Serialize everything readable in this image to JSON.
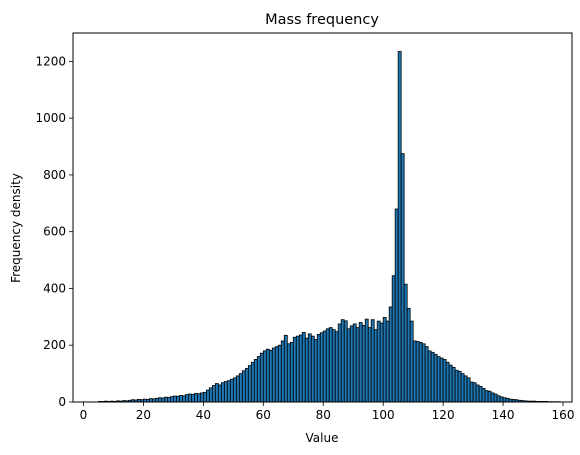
{
  "chart_data": {
    "type": "bar",
    "title": "Mass frequency",
    "xlabel": "Value",
    "ylabel": "Frequency density",
    "xlim": [
      -3.5,
      163
    ],
    "ylim": [
      0,
      1300
    ],
    "xticks": [
      0,
      20,
      40,
      60,
      80,
      100,
      120,
      140,
      160
    ],
    "yticks": [
      0,
      200,
      400,
      600,
      800,
      1000,
      1200
    ],
    "grid": false,
    "bar_color": "#1f77b4",
    "edge_color": "#000000",
    "bin_width": 1,
    "bins": [
      {
        "x": 5,
        "y": 2
      },
      {
        "x": 6,
        "y": 2
      },
      {
        "x": 7,
        "y": 3
      },
      {
        "x": 8,
        "y": 2
      },
      {
        "x": 9,
        "y": 3
      },
      {
        "x": 10,
        "y": 2
      },
      {
        "x": 11,
        "y": 4
      },
      {
        "x": 12,
        "y": 3
      },
      {
        "x": 13,
        "y": 5
      },
      {
        "x": 14,
        "y": 4
      },
      {
        "x": 15,
        "y": 6
      },
      {
        "x": 16,
        "y": 8
      },
      {
        "x": 17,
        "y": 7
      },
      {
        "x": 18,
        "y": 9
      },
      {
        "x": 19,
        "y": 8
      },
      {
        "x": 20,
        "y": 10
      },
      {
        "x": 21,
        "y": 9
      },
      {
        "x": 22,
        "y": 12
      },
      {
        "x": 23,
        "y": 11
      },
      {
        "x": 24,
        "y": 13
      },
      {
        "x": 25,
        "y": 15
      },
      {
        "x": 26,
        "y": 14
      },
      {
        "x": 27,
        "y": 17
      },
      {
        "x": 28,
        "y": 16
      },
      {
        "x": 29,
        "y": 19
      },
      {
        "x": 30,
        "y": 21
      },
      {
        "x": 31,
        "y": 20
      },
      {
        "x": 32,
        "y": 23
      },
      {
        "x": 33,
        "y": 22
      },
      {
        "x": 34,
        "y": 26
      },
      {
        "x": 35,
        "y": 28
      },
      {
        "x": 36,
        "y": 27
      },
      {
        "x": 37,
        "y": 30
      },
      {
        "x": 38,
        "y": 29
      },
      {
        "x": 39,
        "y": 32
      },
      {
        "x": 40,
        "y": 34
      },
      {
        "x": 41,
        "y": 42
      },
      {
        "x": 42,
        "y": 50
      },
      {
        "x": 43,
        "y": 58
      },
      {
        "x": 44,
        "y": 65
      },
      {
        "x": 45,
        "y": 60
      },
      {
        "x": 46,
        "y": 68
      },
      {
        "x": 47,
        "y": 72
      },
      {
        "x": 48,
        "y": 75
      },
      {
        "x": 49,
        "y": 80
      },
      {
        "x": 50,
        "y": 85
      },
      {
        "x": 51,
        "y": 92
      },
      {
        "x": 52,
        "y": 100
      },
      {
        "x": 53,
        "y": 110
      },
      {
        "x": 54,
        "y": 118
      },
      {
        "x": 55,
        "y": 128
      },
      {
        "x": 56,
        "y": 140
      },
      {
        "x": 57,
        "y": 150
      },
      {
        "x": 58,
        "y": 160
      },
      {
        "x": 59,
        "y": 172
      },
      {
        "x": 60,
        "y": 180
      },
      {
        "x": 61,
        "y": 186
      },
      {
        "x": 62,
        "y": 182
      },
      {
        "x": 63,
        "y": 190
      },
      {
        "x": 64,
        "y": 195
      },
      {
        "x": 65,
        "y": 200
      },
      {
        "x": 66,
        "y": 215
      },
      {
        "x": 67,
        "y": 235
      },
      {
        "x": 68,
        "y": 205
      },
      {
        "x": 69,
        "y": 210
      },
      {
        "x": 70,
        "y": 228
      },
      {
        "x": 71,
        "y": 232
      },
      {
        "x": 72,
        "y": 236
      },
      {
        "x": 73,
        "y": 245
      },
      {
        "x": 74,
        "y": 225
      },
      {
        "x": 75,
        "y": 240
      },
      {
        "x": 76,
        "y": 232
      },
      {
        "x": 77,
        "y": 220
      },
      {
        "x": 78,
        "y": 238
      },
      {
        "x": 79,
        "y": 244
      },
      {
        "x": 80,
        "y": 250
      },
      {
        "x": 81,
        "y": 258
      },
      {
        "x": 82,
        "y": 262
      },
      {
        "x": 83,
        "y": 255
      },
      {
        "x": 84,
        "y": 248
      },
      {
        "x": 85,
        "y": 275
      },
      {
        "x": 86,
        "y": 290
      },
      {
        "x": 87,
        "y": 286
      },
      {
        "x": 88,
        "y": 258
      },
      {
        "x": 89,
        "y": 268
      },
      {
        "x": 90,
        "y": 275
      },
      {
        "x": 91,
        "y": 262
      },
      {
        "x": 92,
        "y": 280
      },
      {
        "x": 93,
        "y": 270
      },
      {
        "x": 94,
        "y": 292
      },
      {
        "x": 95,
        "y": 262
      },
      {
        "x": 96,
        "y": 290
      },
      {
        "x": 97,
        "y": 255
      },
      {
        "x": 98,
        "y": 285
      },
      {
        "x": 99,
        "y": 278
      },
      {
        "x": 100,
        "y": 298
      },
      {
        "x": 101,
        "y": 285
      },
      {
        "x": 102,
        "y": 335
      },
      {
        "x": 103,
        "y": 445
      },
      {
        "x": 104,
        "y": 680
      },
      {
        "x": 105,
        "y": 1235
      },
      {
        "x": 106,
        "y": 875
      },
      {
        "x": 107,
        "y": 415
      },
      {
        "x": 108,
        "y": 330
      },
      {
        "x": 109,
        "y": 285
      },
      {
        "x": 110,
        "y": 215
      },
      {
        "x": 111,
        "y": 213
      },
      {
        "x": 112,
        "y": 210
      },
      {
        "x": 113,
        "y": 205
      },
      {
        "x": 114,
        "y": 195
      },
      {
        "x": 115,
        "y": 180
      },
      {
        "x": 116,
        "y": 175
      },
      {
        "x": 117,
        "y": 168
      },
      {
        "x": 118,
        "y": 160
      },
      {
        "x": 119,
        "y": 155
      },
      {
        "x": 120,
        "y": 150
      },
      {
        "x": 121,
        "y": 140
      },
      {
        "x": 122,
        "y": 130
      },
      {
        "x": 123,
        "y": 122
      },
      {
        "x": 124,
        "y": 112
      },
      {
        "x": 125,
        "y": 108
      },
      {
        "x": 126,
        "y": 100
      },
      {
        "x": 127,
        "y": 92
      },
      {
        "x": 128,
        "y": 85
      },
      {
        "x": 129,
        "y": 70
      },
      {
        "x": 130,
        "y": 68
      },
      {
        "x": 131,
        "y": 60
      },
      {
        "x": 132,
        "y": 55
      },
      {
        "x": 133,
        "y": 48
      },
      {
        "x": 134,
        "y": 40
      },
      {
        "x": 135,
        "y": 38
      },
      {
        "x": 136,
        "y": 32
      },
      {
        "x": 137,
        "y": 28
      },
      {
        "x": 138,
        "y": 22
      },
      {
        "x": 139,
        "y": 18
      },
      {
        "x": 140,
        "y": 15
      },
      {
        "x": 141,
        "y": 13
      },
      {
        "x": 142,
        "y": 10
      },
      {
        "x": 143,
        "y": 9
      },
      {
        "x": 144,
        "y": 8
      },
      {
        "x": 145,
        "y": 6
      },
      {
        "x": 146,
        "y": 5
      },
      {
        "x": 147,
        "y": 4
      },
      {
        "x": 148,
        "y": 3
      },
      {
        "x": 149,
        "y": 3
      },
      {
        "x": 150,
        "y": 3
      },
      {
        "x": 151,
        "y": 2
      },
      {
        "x": 152,
        "y": 2
      },
      {
        "x": 153,
        "y": 2
      },
      {
        "x": 154,
        "y": 2
      },
      {
        "x": 155,
        "y": 1
      },
      {
        "x": 156,
        "y": 1
      },
      {
        "x": 157,
        "y": 1
      },
      {
        "x": 158,
        "y": 1
      }
    ]
  }
}
